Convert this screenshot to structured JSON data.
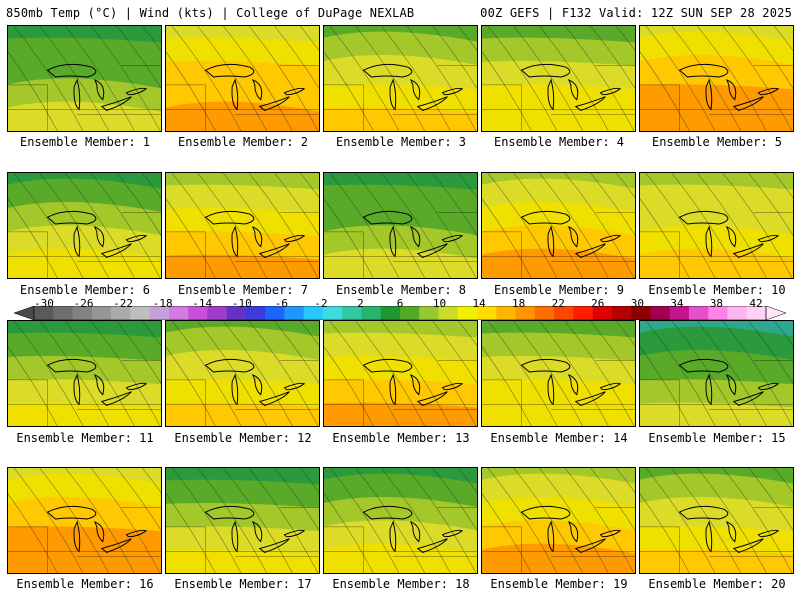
{
  "header": {
    "left": "850mb Temp (°C) | Wind (kts) | College of DuPage NEXLAB",
    "right": "00Z GEFS | F132 Valid: 12Z SUN SEP 28 2025"
  },
  "members": [
    {
      "label": "Ensemble Member: 1",
      "warmth": 0.35
    },
    {
      "label": "Ensemble Member: 2",
      "warmth": 0.75
    },
    {
      "label": "Ensemble Member: 3",
      "warmth": 0.55
    },
    {
      "label": "Ensemble Member: 4",
      "warmth": 0.5
    },
    {
      "label": "Ensemble Member: 5",
      "warmth": 0.8
    },
    {
      "label": "Ensemble Member: 6",
      "warmth": 0.45
    },
    {
      "label": "Ensemble Member: 7",
      "warmth": 0.65
    },
    {
      "label": "Ensemble Member: 8",
      "warmth": 0.35
    },
    {
      "label": "Ensemble Member: 9",
      "warmth": 0.7
    },
    {
      "label": "Ensemble Member: 10",
      "warmth": 0.6
    },
    {
      "label": "Ensemble Member: 11",
      "warmth": 0.4
    },
    {
      "label": "Ensemble Member: 12",
      "warmth": 0.55
    },
    {
      "label": "Ensemble Member: 13",
      "warmth": 0.65
    },
    {
      "label": "Ensemble Member: 14",
      "warmth": 0.5
    },
    {
      "label": "Ensemble Member: 15",
      "warmth": 0.3
    },
    {
      "label": "Ensemble Member: 16",
      "warmth": 0.8
    },
    {
      "label": "Ensemble Member: 17",
      "warmth": 0.4
    },
    {
      "label": "Ensemble Member: 18",
      "warmth": 0.45
    },
    {
      "label": "Ensemble Member: 19",
      "warmth": 0.7
    },
    {
      "label": "Ensemble Member: 20",
      "warmth": 0.55
    }
  ],
  "colorbar": {
    "tick_labels": [
      "-30",
      "-26",
      "-22",
      "-18",
      "-14",
      "-10",
      "-6",
      "-2",
      "2",
      "6",
      "10",
      "14",
      "18",
      "22",
      "26",
      "30",
      "34",
      "38",
      "42"
    ],
    "colors": [
      "#5a5a5a",
      "#6e6e6e",
      "#828282",
      "#969696",
      "#aaaaaa",
      "#bebebe",
      "#c8a0d8",
      "#d27be0",
      "#c850d8",
      "#a03cc8",
      "#6432c8",
      "#3c3cdc",
      "#1e64ff",
      "#1e96ff",
      "#28c8ff",
      "#3cdcdc",
      "#32c8a0",
      "#28b46e",
      "#1e9632",
      "#50aa28",
      "#96c832",
      "#c8dc28",
      "#f0f000",
      "#ffdc00",
      "#ffb400",
      "#ff9600",
      "#ff6e00",
      "#ff4600",
      "#ff1e00",
      "#e10000",
      "#b40000",
      "#8c0000",
      "#a00050",
      "#c8148c",
      "#e650c8",
      "#ff82e6",
      "#ffb4f0",
      "#ffd2f5"
    ]
  }
}
